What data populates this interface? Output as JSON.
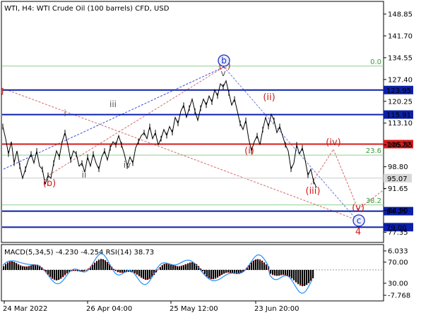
{
  "header": {
    "title": "WTI, H4:  WTI Crude Oil (100 barrels) CFD, USD"
  },
  "chart_data": {
    "type": "line",
    "symbol": "WTI",
    "timeframe": "H4",
    "ylim": [
      74.0,
      153.0
    ],
    "price_ticks": [
      148.85,
      141.7,
      134.55,
      127.4,
      120.25,
      113.1,
      105.95,
      98.8,
      91.65,
      84.5,
      77.35
    ],
    "time_ticks": [
      "24 Mar 2022",
      "26 Apr 04:00",
      "25 May 12:00",
      "23 Jun 20:00"
    ],
    "horizontal_levels": [
      {
        "value": 123.95,
        "label": "123.95",
        "color": "#0b1fa8",
        "label_bg": "#0b1fa8"
      },
      {
        "value": 115.91,
        "label": "115.91",
        "color": "#0b1fa8",
        "label_bg": "#0b1fa8"
      },
      {
        "value": 106.22,
        "label": "106.22",
        "color": "#d61b1b",
        "label_bg": "#d61b1b"
      },
      {
        "value": 84.25,
        "label": "84.25",
        "color": "#0b1fa8",
        "label_bg": "#0b1fa8"
      },
      {
        "value": 79.0,
        "label": "79.00",
        "color": "#0b1fa8",
        "label_bg": "#0b1fa8"
      }
    ],
    "current_price": {
      "value": 95.07,
      "label": "95.07"
    },
    "fib_levels": [
      {
        "value": 131.8,
        "label": "0.0"
      },
      {
        "value": 102.6,
        "label": "23.6"
      },
      {
        "value": 86.3,
        "label": "38.2"
      }
    ],
    "price_path": [
      [
        0,
        112
      ],
      [
        4,
        108
      ],
      [
        8,
        103
      ],
      [
        12,
        107
      ],
      [
        16,
        100
      ],
      [
        20,
        104
      ],
      [
        24,
        99
      ],
      [
        28,
        95
      ],
      [
        32,
        98
      ],
      [
        36,
        101
      ],
      [
        40,
        103
      ],
      [
        44,
        100
      ],
      [
        48,
        104
      ],
      [
        52,
        99
      ],
      [
        56,
        98
      ],
      [
        60,
        93
      ],
      [
        64,
        96
      ],
      [
        68,
        95
      ],
      [
        72,
        100
      ],
      [
        76,
        104
      ],
      [
        80,
        102
      ],
      [
        84,
        107
      ],
      [
        88,
        110
      ],
      [
        92,
        106
      ],
      [
        96,
        101
      ],
      [
        100,
        104
      ],
      [
        104,
        103
      ],
      [
        108,
        99
      ],
      [
        112,
        100
      ],
      [
        116,
        97
      ],
      [
        120,
        102
      ],
      [
        124,
        99
      ],
      [
        128,
        103
      ],
      [
        132,
        100
      ],
      [
        136,
        98
      ],
      [
        140,
        102
      ],
      [
        144,
        104
      ],
      [
        148,
        101
      ],
      [
        152,
        105
      ],
      [
        156,
        107
      ],
      [
        160,
        106
      ],
      [
        164,
        109
      ],
      [
        168,
        106
      ],
      [
        172,
        103
      ],
      [
        176,
        99
      ],
      [
        180,
        102
      ],
      [
        184,
        100
      ],
      [
        188,
        105
      ],
      [
        192,
        107
      ],
      [
        196,
        109
      ],
      [
        200,
        110
      ],
      [
        204,
        108
      ],
      [
        208,
        112
      ],
      [
        212,
        108
      ],
      [
        216,
        110
      ],
      [
        220,
        106
      ],
      [
        224,
        108
      ],
      [
        228,
        111
      ],
      [
        232,
        109
      ],
      [
        236,
        112
      ],
      [
        240,
        110
      ],
      [
        244,
        115
      ],
      [
        248,
        113
      ],
      [
        252,
        117
      ],
      [
        256,
        119
      ],
      [
        260,
        115
      ],
      [
        264,
        118
      ],
      [
        268,
        121
      ],
      [
        272,
        117
      ],
      [
        276,
        114
      ],
      [
        280,
        118
      ],
      [
        284,
        121
      ],
      [
        288,
        119
      ],
      [
        292,
        122
      ],
      [
        296,
        120
      ],
      [
        300,
        124
      ],
      [
        304,
        122
      ],
      [
        308,
        126
      ],
      [
        312,
        125
      ],
      [
        316,
        127
      ],
      [
        320,
        123
      ],
      [
        324,
        119
      ],
      [
        328,
        121
      ],
      [
        332,
        117
      ],
      [
        336,
        113
      ],
      [
        340,
        111
      ],
      [
        344,
        114
      ],
      [
        348,
        108
      ],
      [
        352,
        104
      ],
      [
        356,
        107
      ],
      [
        360,
        109
      ],
      [
        364,
        106
      ],
      [
        368,
        111
      ],
      [
        372,
        115
      ],
      [
        376,
        112
      ],
      [
        380,
        116
      ],
      [
        384,
        114
      ],
      [
        388,
        110
      ],
      [
        392,
        112
      ],
      [
        396,
        109
      ],
      [
        400,
        106
      ],
      [
        404,
        104
      ],
      [
        408,
        98
      ],
      [
        412,
        100
      ],
      [
        416,
        106
      ],
      [
        420,
        103
      ],
      [
        424,
        105
      ],
      [
        428,
        101
      ],
      [
        432,
        96
      ],
      [
        436,
        98
      ],
      [
        440,
        94
      ],
      [
        444,
        92
      ]
    ],
    "wave_labels": [
      {
        "text": ")",
        "x": 3,
        "y": 134,
        "color": "red"
      },
      {
        "text": "(b)",
        "x": 70,
        "y": 264,
        "color": "red"
      },
      {
        "text": "i",
        "x": 92,
        "y": 165,
        "color": "grey"
      },
      {
        "text": "ii",
        "x": 119,
        "y": 252,
        "color": "grey"
      },
      {
        "text": "iii",
        "x": 160,
        "y": 152,
        "color": "grey"
      },
      {
        "text": "iv",
        "x": 180,
        "y": 238,
        "color": "grey"
      },
      {
        "text": "v",
        "x": 316,
        "y": 108,
        "color": "grey"
      },
      {
        "text": "(c)",
        "x": 318,
        "y": 97,
        "color": "red"
      },
      {
        "text": "(i)",
        "x": 353,
        "y": 218,
        "color": "red"
      },
      {
        "text": "(ii)",
        "x": 381,
        "y": 142,
        "color": "red"
      },
      {
        "text": "(iii)",
        "x": 443,
        "y": 275,
        "color": "red"
      },
      {
        "text": "(iv)",
        "x": 472,
        "y": 206,
        "color": "red"
      },
      {
        "text": "(v)",
        "x": 507,
        "y": 299,
        "color": "red"
      },
      {
        "text": "4",
        "x": 507,
        "y": 333,
        "color": "red"
      }
    ],
    "circled_labels": [
      {
        "text": "b",
        "x": 317,
        "y": 86
      },
      {
        "text": "c",
        "x": 508,
        "y": 313
      }
    ],
    "indicator": {
      "label": "MACD(5,34,5) -4.230 -4.254 RSI(14) 38.73",
      "ticks": [
        "6.033",
        "70.00",
        "30.00",
        "-7.768"
      ]
    }
  }
}
